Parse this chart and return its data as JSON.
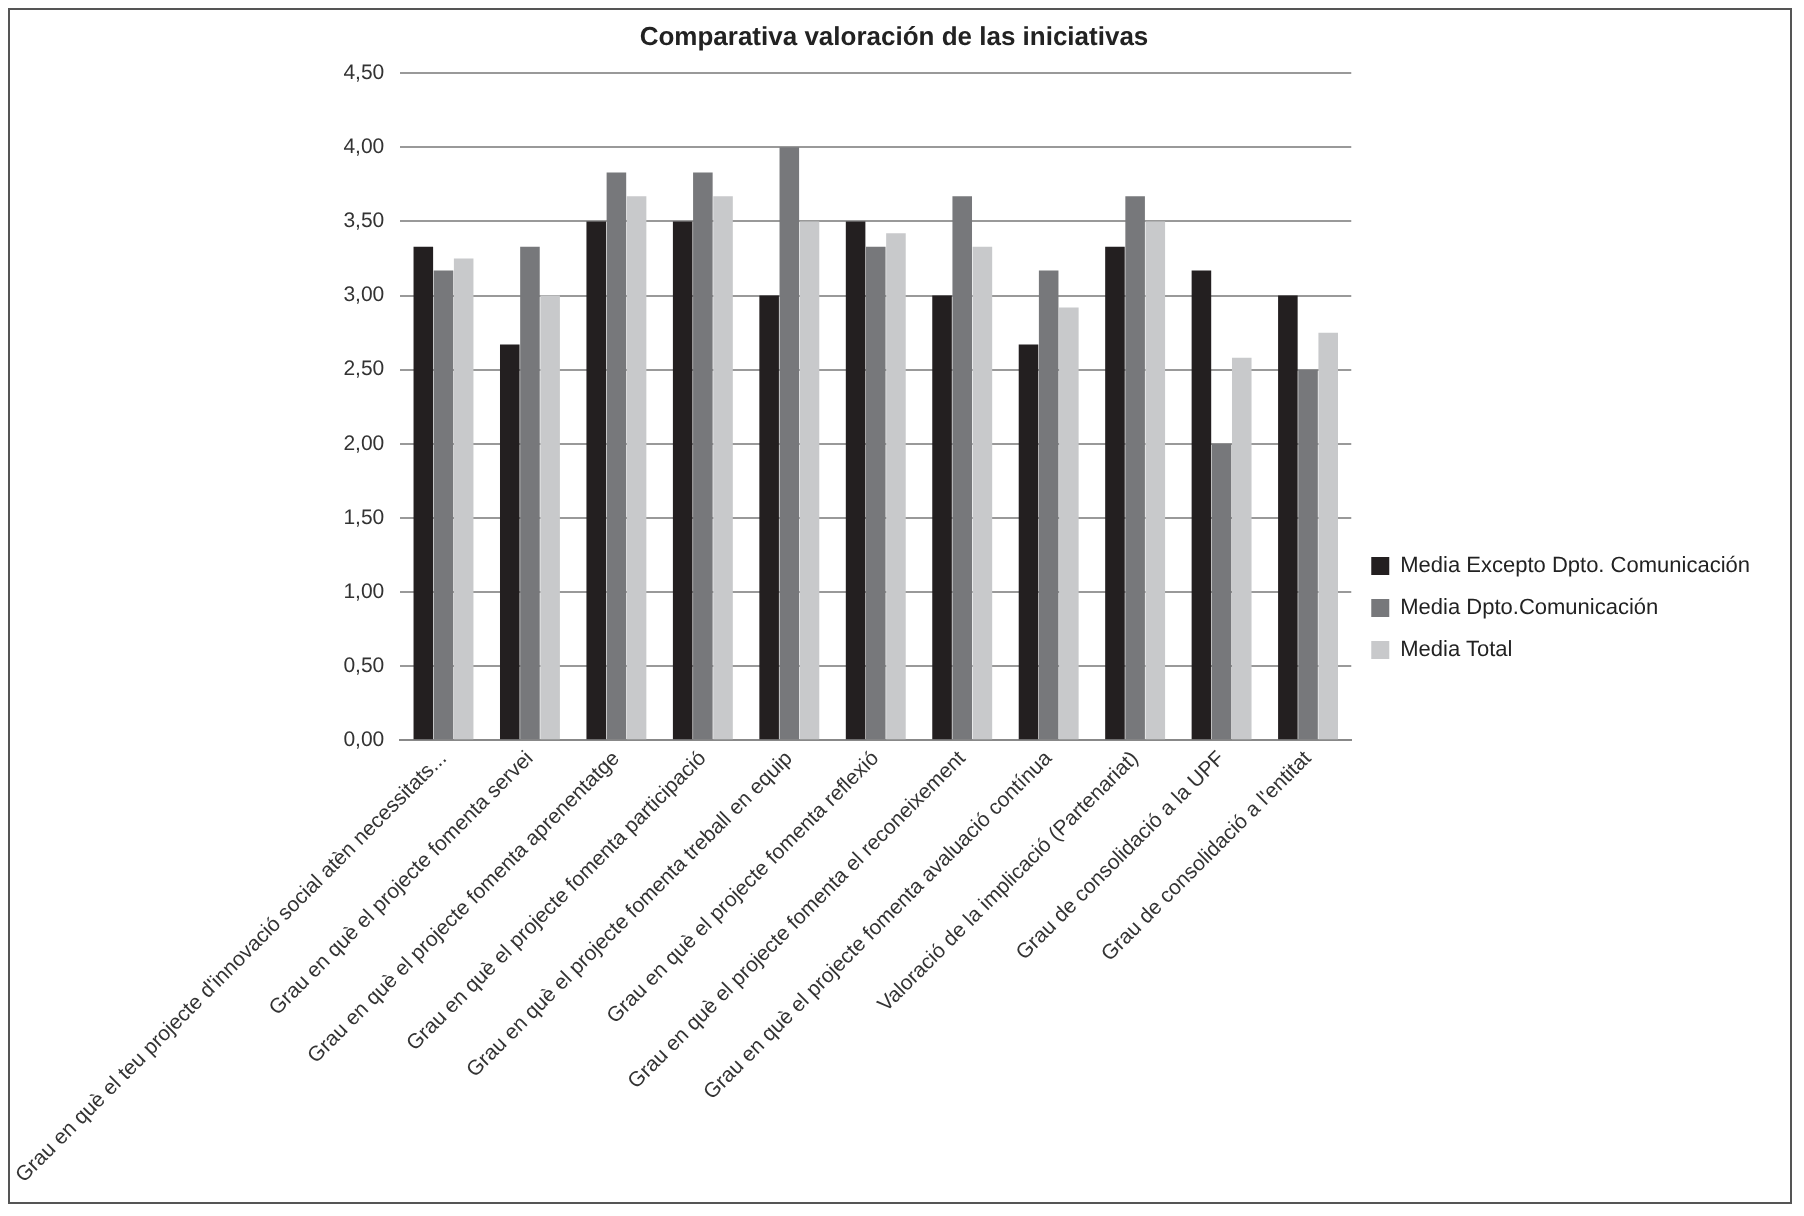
{
  "chart_data": {
    "type": "bar",
    "title": "Comparativa valoración de las iniciativas",
    "categories": [
      "Grau en què el teu projecte d'innovació social atèn necessitats...",
      "Grau en què el projecte fomenta servei",
      "Grau en què el projecte fomenta aprenentatge",
      "Grau en què el projecte fomenta participació",
      "Grau en què el projecte fomenta treball en equip",
      "Grau en què el projecte fomenta reflexió",
      "Grau en què el projecte fomenta el reconeixement",
      "Grau en què el projecte fomenta avaluació contínua",
      "Valoració de la implicació (Partenariat)",
      "Grau de consolidació a la UPF",
      "Grau de consolidació a l'entitat"
    ],
    "series": [
      {
        "name": "Media Excepto Dpto. Comunicación",
        "color": "#231f20",
        "values": [
          3.33,
          2.67,
          3.5,
          3.5,
          3.0,
          3.5,
          3.0,
          2.67,
          3.33,
          3.17,
          3.0
        ]
      },
      {
        "name": "Media Dpto.Comunicación",
        "color": "#77787b",
        "values": [
          3.17,
          3.33,
          3.83,
          3.83,
          4.0,
          3.33,
          3.67,
          3.17,
          3.67,
          2.0,
          2.5
        ]
      },
      {
        "name": "Media Total",
        "color": "#c8c9cb",
        "values": [
          3.25,
          3.0,
          3.67,
          3.67,
          3.5,
          3.42,
          3.33,
          2.92,
          3.5,
          2.58,
          2.75
        ]
      }
    ],
    "ylim": [
      0,
      4.5
    ],
    "yticks": [
      {
        "value": 0,
        "label": "0,00"
      },
      {
        "value": 0.5,
        "label": "0,50"
      },
      {
        "value": 1,
        "label": "1,00"
      },
      {
        "value": 1.5,
        "label": "1,50"
      },
      {
        "value": 2,
        "label": "2,00"
      },
      {
        "value": 2.5,
        "label": "2,50"
      },
      {
        "value": 3,
        "label": "3,00"
      },
      {
        "value": 3.5,
        "label": "3,50"
      },
      {
        "value": 4,
        "label": "4,00"
      },
      {
        "value": 4.5,
        "label": "4,50"
      }
    ],
    "grid": "y",
    "legend": "right"
  }
}
